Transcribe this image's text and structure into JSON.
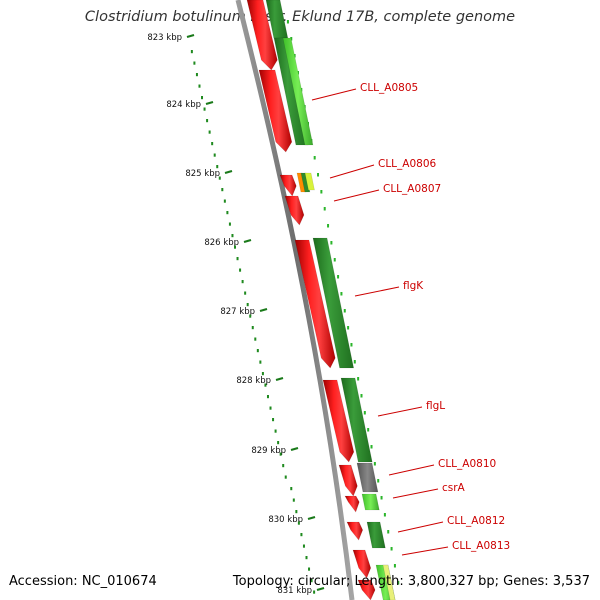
{
  "title": "Clostridium botulinum B str. Eklund 17B, complete genome",
  "footer": {
    "accession": "Accession: NC_010674",
    "stats": "Topology: circular; Length: 3,800,327 bp; Genes: 3,537"
  },
  "colors": {
    "forward_strand": "#ff0000",
    "reverse_strand": "#2e8b2e",
    "reverse_light": "#66dd44",
    "backbone": "#808080",
    "label": "#cc0000",
    "tick": "#1a7a1a",
    "gc_skew": "#33cc33"
  },
  "scale": {
    "ticks": [
      "823 kbp",
      "824 kbp",
      "825 kbp",
      "826 kbp",
      "827 kbp",
      "828 kbp",
      "829 kbp",
      "830 kbp",
      "831 kbp"
    ]
  },
  "genes": [
    {
      "label": "CLL_A0805"
    },
    {
      "label": "CLL_A0806"
    },
    {
      "label": "CLL_A0807"
    },
    {
      "label": "flgK"
    },
    {
      "label": "flgL"
    },
    {
      "label": "CLL_A0810"
    },
    {
      "label": "csrA"
    },
    {
      "label": "CLL_A0812"
    },
    {
      "label": "CLL_A0813"
    }
  ]
}
